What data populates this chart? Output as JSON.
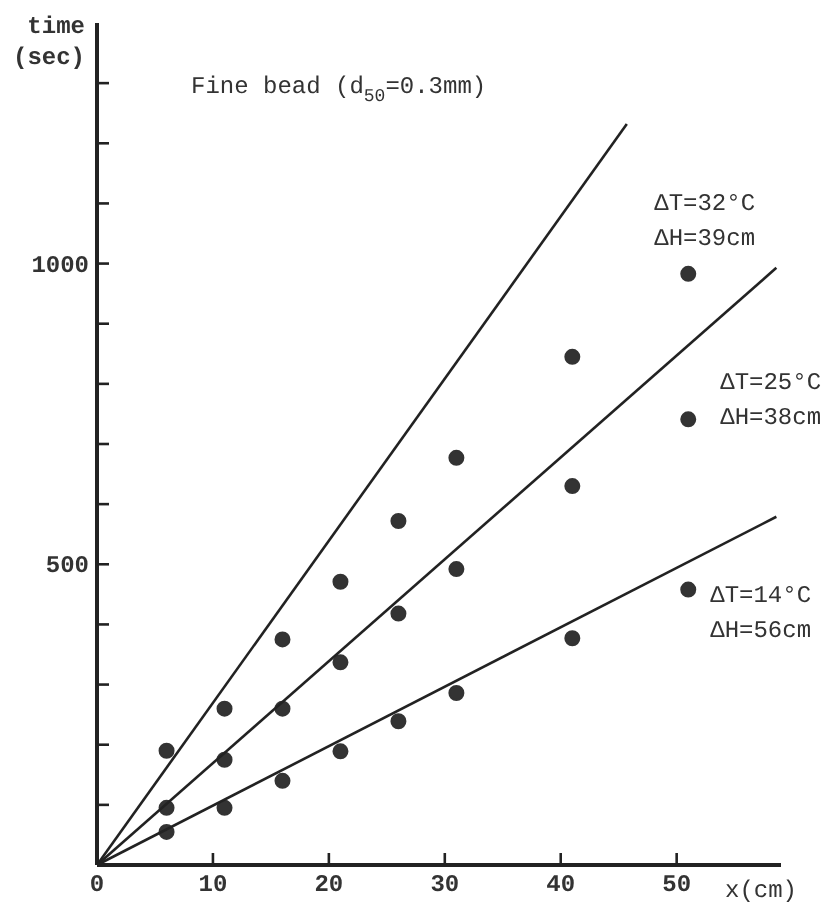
{
  "chart_data": {
    "type": "scatter",
    "title": "Fine bead (d$_{50}$=0.3mm)",
    "xlabel": "x(cm)",
    "ylabel": "time\n(sec)",
    "xlim": [
      0,
      59
    ],
    "ylim": [
      0,
      1400
    ],
    "xticks": [
      0,
      10,
      20,
      30,
      40,
      50
    ],
    "yticks": [
      {
        "value": 100,
        "label": null
      },
      {
        "value": 200,
        "label": null
      },
      {
        "value": 300,
        "label": null
      },
      {
        "value": 400,
        "label": null
      },
      500,
      {
        "value": 600,
        "label": null
      },
      {
        "value": 700,
        "label": null
      },
      {
        "value": 800,
        "label": null
      },
      {
        "value": 900,
        "label": null
      },
      1000,
      {
        "value": 1100,
        "label": null
      },
      {
        "value": 1200,
        "label": null
      },
      {
        "value": 1300,
        "label": null
      }
    ],
    "grid": false,
    "series": [
      {
        "name": "ΔT=32°C\nΔH=39cm",
        "color": "#333333",
        "marker": "circle",
        "x": [
          6,
          11,
          16,
          21,
          26,
          31,
          41,
          51
        ],
        "values": [
          190,
          260,
          375,
          471,
          572,
          677,
          845,
          983
        ]
      },
      {
        "name": "ΔT=25°C\nΔH=38cm",
        "color": "#333333",
        "marker": "circle",
        "x": [
          6,
          11,
          16,
          21,
          26,
          31,
          41,
          51
        ],
        "values": [
          95,
          175,
          260,
          337,
          418,
          492,
          630,
          741
        ]
      },
      {
        "name": "ΔT=14°C\nΔH=56cm",
        "color": "#333333",
        "marker": "circle",
        "x": [
          6,
          11,
          16,
          21,
          26,
          31,
          41,
          51
        ],
        "values": [
          55,
          95,
          140,
          189,
          239,
          286,
          377,
          458
        ]
      },
      {
        "type": "line",
        "color": "#222222",
        "marker": "none",
        "x": [
          0,
          45.7
        ],
        "values": [
          0,
          1232
        ]
      },
      {
        "type": "line",
        "color": "#222222",
        "marker": "none",
        "x": [
          0,
          58.6
        ],
        "values": [
          0,
          993
        ]
      },
      {
        "type": "line",
        "color": "#222222",
        "marker": "none",
        "x": [
          0,
          58.6
        ],
        "values": [
          0,
          579
        ]
      }
    ]
  }
}
